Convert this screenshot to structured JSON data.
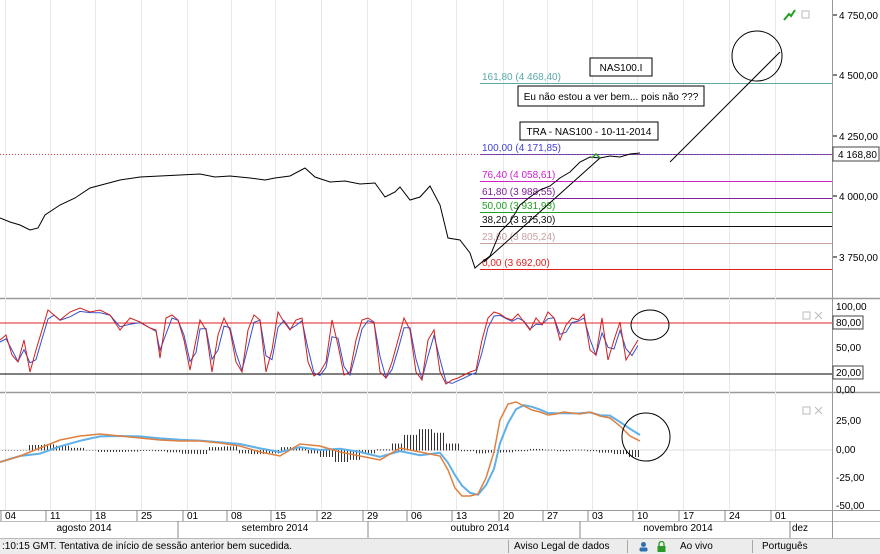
{
  "price_axis": {
    "labels": [
      "4 750,00",
      "4 500,00",
      "4 250,00",
      "4 000,00",
      "3 750,00"
    ],
    "current_price": "4 168,80"
  },
  "fib_levels": [
    {
      "label": "161,80 (4 468,40)",
      "color": "#5aa8a8"
    },
    {
      "label": "100,00 (4 171,85)",
      "color": "#4040d8"
    },
    {
      "label": "76,40 (4 058,61)",
      "color": "#d020d0"
    },
    {
      "label": "61,80 (3 988,55)",
      "color": "#8020a0"
    },
    {
      "label": "50,00 (3 931,93)",
      "color": "#20a020"
    },
    {
      "label": "38,20 (3 875,30)",
      "color": "#101010"
    },
    {
      "label": "23,60 (3 805,24)",
      "color": "#c8a0a0"
    },
    {
      "label": "0,00 (3 692,00)",
      "color": "#e02020"
    }
  ],
  "annotations": {
    "symbol_note": "NAS100.I",
    "comment_note": "Eu não estou a ver bem... pois não ???",
    "tra_note": "TRA - NAS100 - 10-11-2014"
  },
  "stochastic": {
    "axis_labels": [
      "100,00",
      "50,00",
      "0,00"
    ],
    "upper_level": "80,00",
    "lower_level": "20,00"
  },
  "macd": {
    "axis_labels": [
      "25,00",
      "0,00",
      "-25,00",
      "-50,00"
    ]
  },
  "time_axis": {
    "days": [
      "04",
      "11",
      "18",
      "25",
      "01",
      "08",
      "15",
      "22",
      "29",
      "06",
      "13",
      "20",
      "27",
      "03",
      "10",
      "17",
      "24",
      "01"
    ],
    "months": [
      "agosto 2014",
      "setembro 2014",
      "outubro 2014",
      "novembro 2014",
      "dez"
    ]
  },
  "status_bar": {
    "message": ":10:15 GMT. Tentativa de início de sessão anterior bem sucedida.",
    "legal": "Aviso Legal de dados",
    "live": "Ao vivo",
    "language": "Português"
  },
  "colors": {
    "price_line": "#000000",
    "stoch_k": "#d02020",
    "stoch_d": "#3050d0",
    "macd_fast": "#e08040",
    "macd_slow": "#60b0e8",
    "level_line": "#e02020"
  }
}
